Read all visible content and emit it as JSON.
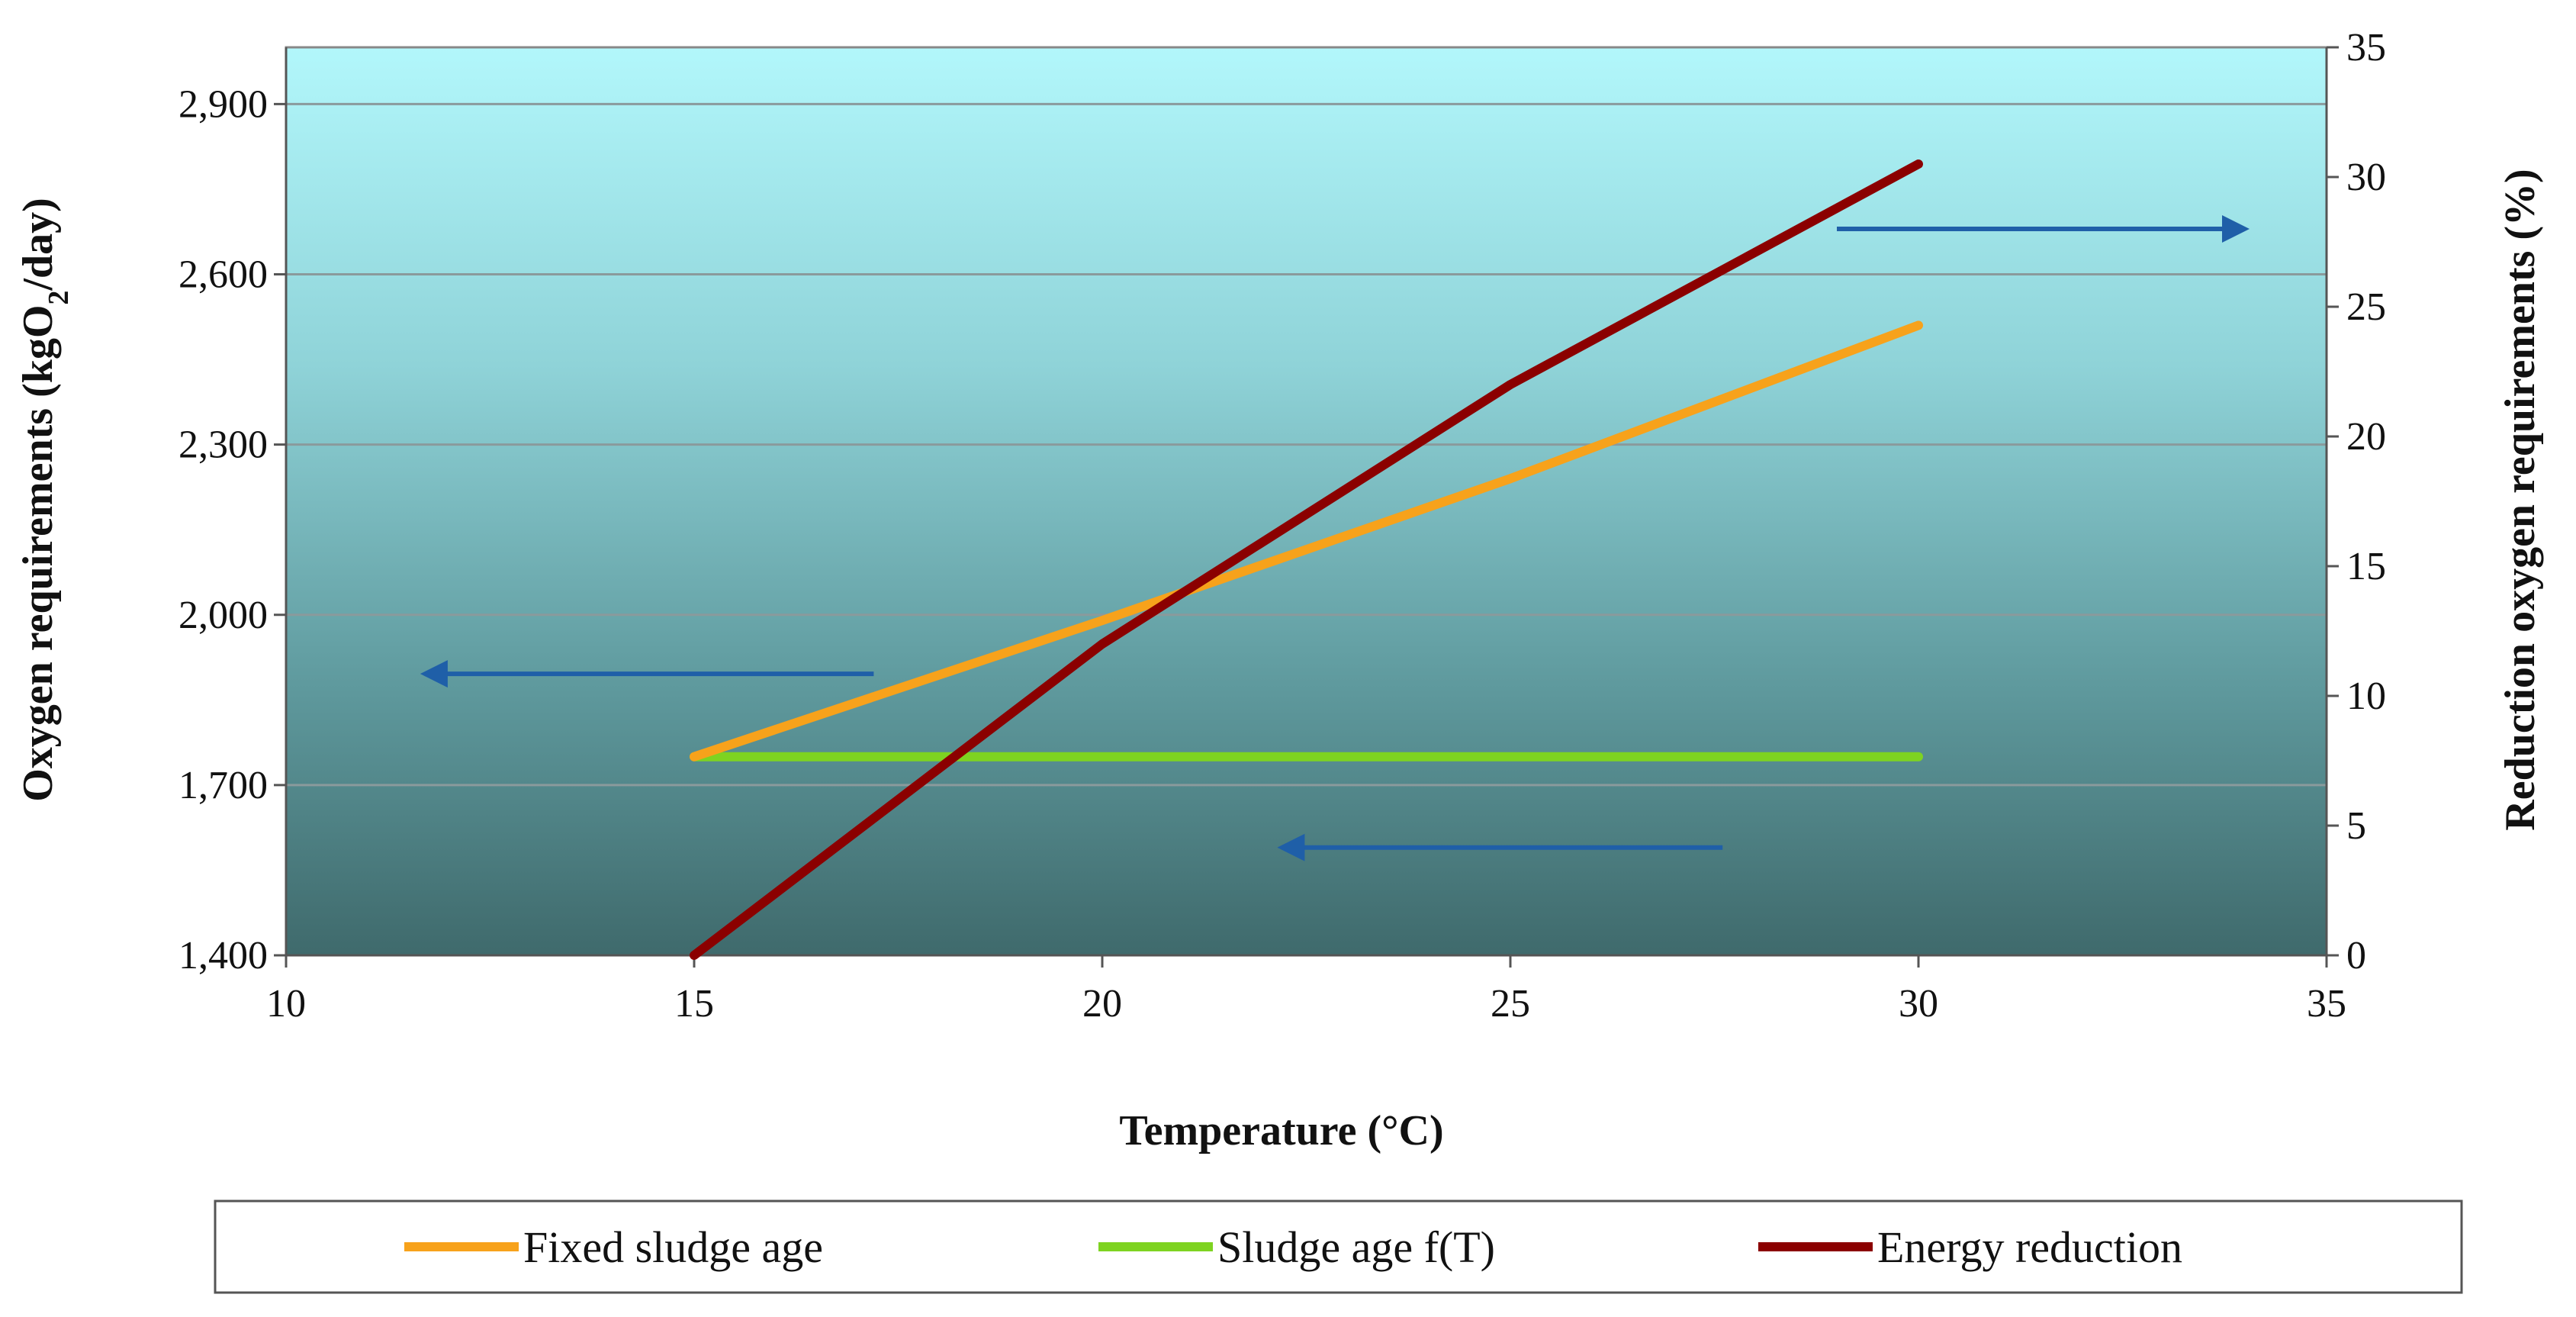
{
  "chart_data": {
    "type": "line",
    "title": "",
    "xlabel": "Temperature (°C)",
    "ylabel_left_parts": [
      "Oxygen requirements (kgO",
      "2",
      "/day)"
    ],
    "ylabel_right": "Reduction oxygen requirements (%)",
    "xlim": [
      10,
      35
    ],
    "ylim_left": [
      1400,
      3000
    ],
    "ylim_right": [
      0,
      35
    ],
    "x_ticks": [
      10,
      15,
      20,
      25,
      30,
      35
    ],
    "x_tick_labels": [
      "10",
      "15",
      "20",
      "25",
      "30",
      "35"
    ],
    "left_ticks": [
      1400,
      1700,
      2000,
      2300,
      2600,
      2900
    ],
    "left_tick_labels": [
      "1,400",
      "1,700",
      "2,000",
      "2,300",
      "2,600",
      "2,900"
    ],
    "right_ticks": [
      0,
      5,
      10,
      15,
      20,
      25,
      30,
      35
    ],
    "right_tick_labels": [
      "0",
      "5",
      "10",
      "15",
      "20",
      "25",
      "30",
      "35"
    ],
    "grid": true,
    "legend_position": "bottom",
    "series": [
      {
        "name": "Fixed sludge age",
        "axis": "left",
        "color": "#f7a21b",
        "x": [
          15,
          20,
          25,
          30
        ],
        "y": [
          1750,
          1990,
          2240,
          2510
        ]
      },
      {
        "name": "Sludge age f(T)",
        "axis": "left",
        "color": "#7ed321",
        "x": [
          15,
          30
        ],
        "y": [
          1750,
          1750
        ]
      },
      {
        "name": "Energy reduction",
        "axis": "right",
        "color": "#8b0000",
        "x": [
          15,
          20,
          25,
          30
        ],
        "y": [
          0,
          12,
          22,
          30.5
        ]
      }
    ],
    "annotations": [
      {
        "name": "arrow-to-right-axis",
        "direction": "right",
        "x_from": 29,
        "x_to": 34,
        "axis": "right",
        "y": 28
      },
      {
        "name": "arrow-to-left-axis-upper",
        "direction": "left",
        "x_from": 17.2,
        "x_to": 11.7,
        "axis": "left",
        "y": 1896
      },
      {
        "name": "arrow-to-left-axis-lower",
        "direction": "left",
        "x_from": 27.6,
        "x_to": 22.2,
        "axis": "left",
        "y": 1590
      }
    ]
  }
}
